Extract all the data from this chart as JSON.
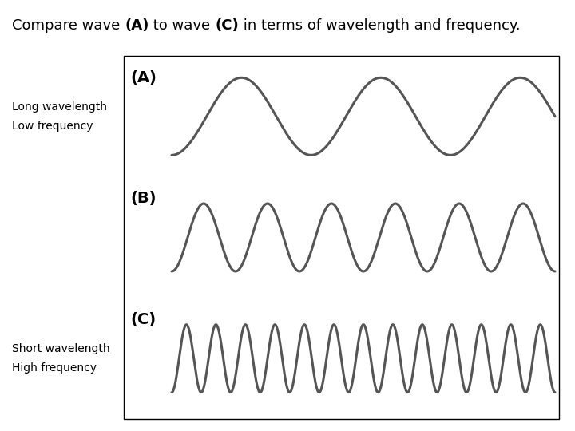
{
  "title_parts": [
    {
      "text": "Compare wave ",
      "bold": false
    },
    {
      "text": "(A)",
      "bold": true
    },
    {
      "text": " to wave ",
      "bold": false
    },
    {
      "text": "(C)",
      "bold": true
    },
    {
      "text": " in terms of wavelength and frequency.",
      "bold": false
    }
  ],
  "wave_A_cycles": 2.75,
  "wave_B_cycles": 6.0,
  "wave_C_cycles": 13.0,
  "wave_color": "#555555",
  "wave_linewidth": 2.2,
  "label_A": "(A)",
  "label_B": "(B)",
  "label_C": "(C)",
  "text_long_wavelength": "Long wavelength",
  "text_low_frequency": "Low frequency",
  "text_short_wavelength": "Short wavelength",
  "text_high_frequency": "High frequency",
  "bg_color": "#ffffff",
  "title_fontsize": 13,
  "label_fontsize": 14,
  "annotation_fontsize": 10
}
